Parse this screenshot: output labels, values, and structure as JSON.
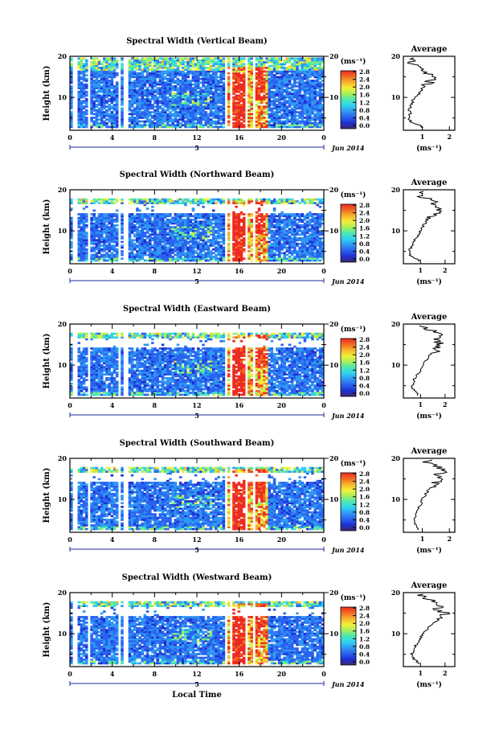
{
  "chart_data": [
    {
      "type": "heatmap",
      "title": "Spectral Width (Vertical Beam)",
      "ylabel": "Height (km)",
      "xlim": [
        0,
        24
      ],
      "ylim": [
        2,
        20
      ],
      "x_ticks": [
        "0",
        "4",
        "8",
        "12",
        "16",
        "20",
        "0"
      ],
      "y_ticks": [
        "20",
        "10"
      ],
      "date_axis": {
        "day_label": "5",
        "end_label": "Jun 2014"
      },
      "colorbar": {
        "unit": "(ms⁻¹)",
        "ticks": [
          "2.8",
          "2.4",
          "2.0",
          "1.6",
          "1.2",
          "0.8",
          "0.4",
          "0.0"
        ],
        "range": [
          0,
          2.8
        ]
      },
      "average_profile": {
        "title": "Average",
        "xlabel": "(ms⁻¹)",
        "x_ticks": [
          "1",
          "2"
        ],
        "xlim": [
          0.3,
          2.2
        ],
        "y_ticks": [
          "20",
          "10"
        ],
        "heights": [
          3,
          4,
          5,
          6,
          7,
          8,
          9,
          10,
          11,
          12,
          13,
          14,
          15,
          16,
          17,
          18,
          19
        ],
        "values": [
          1.0,
          0.6,
          0.5,
          0.55,
          0.5,
          0.6,
          0.65,
          0.7,
          0.9,
          1.0,
          1.1,
          1.3,
          1.5,
          1.2,
          0.8,
          0.6,
          0.7
        ]
      }
    },
    {
      "type": "heatmap",
      "title": "Spectral Width (Northward Beam)",
      "ylabel": "Height (km)",
      "xlim": [
        0,
        24
      ],
      "ylim": [
        2,
        20
      ],
      "x_ticks": [
        "0",
        "4",
        "8",
        "12",
        "16",
        "20",
        "0"
      ],
      "y_ticks": [
        "20",
        "10"
      ],
      "date_axis": {
        "day_label": "5",
        "end_label": "Jun 2014"
      },
      "colorbar": {
        "unit": "(ms⁻¹)",
        "ticks": [
          "2.8",
          "2.4",
          "2.0",
          "1.6",
          "1.2",
          "0.8",
          "0.4",
          "0.0"
        ],
        "range": [
          0,
          2.8
        ]
      },
      "average_profile": {
        "title": "Average",
        "xlabel": "(ms⁻¹)",
        "x_ticks": [
          "1",
          "2"
        ],
        "xlim": [
          0.3,
          2.4
        ],
        "y_ticks": [
          "20",
          "10"
        ],
        "heights": [
          3,
          4,
          5,
          6,
          7,
          8,
          9,
          10,
          11,
          12,
          13,
          14,
          15,
          16,
          17,
          18,
          19
        ],
        "values": [
          0.9,
          0.6,
          0.55,
          0.6,
          0.7,
          0.8,
          0.9,
          1.0,
          1.1,
          1.2,
          1.3,
          1.5,
          1.8,
          1.4,
          1.6,
          1.2,
          0.9
        ]
      }
    },
    {
      "type": "heatmap",
      "title": "Spectral Width (Eastward Beam)",
      "ylabel": "Height (km)",
      "xlim": [
        0,
        24
      ],
      "ylim": [
        2,
        20
      ],
      "x_ticks": [
        "0",
        "4",
        "8",
        "12",
        "16",
        "20",
        "0"
      ],
      "y_ticks": [
        "20",
        "10"
      ],
      "date_axis": {
        "day_label": "5",
        "end_label": "Jun 2014"
      },
      "colorbar": {
        "unit": "(ms⁻¹)",
        "ticks": [
          "2.8",
          "2.4",
          "2.0",
          "1.6",
          "1.2",
          "0.8",
          "0.4",
          "0.0"
        ],
        "range": [
          0,
          2.8
        ]
      },
      "average_profile": {
        "title": "Average",
        "xlabel": "(ms⁻¹)",
        "x_ticks": [
          "1",
          "2"
        ],
        "xlim": [
          0.3,
          2.4
        ],
        "y_ticks": [
          "20",
          "10"
        ],
        "heights": [
          3,
          4,
          5,
          6,
          7,
          8,
          9,
          10,
          11,
          12,
          13,
          14,
          15,
          16,
          17,
          18,
          19
        ],
        "values": [
          0.9,
          0.7,
          0.65,
          0.7,
          0.8,
          0.9,
          1.0,
          1.1,
          1.2,
          1.3,
          1.5,
          1.7,
          1.9,
          1.6,
          2.0,
          1.8,
          1.1
        ]
      }
    },
    {
      "type": "heatmap",
      "title": "Spectral Width (Southward Beam)",
      "ylabel": "Height (km)",
      "xlim": [
        0,
        24
      ],
      "ylim": [
        2,
        20
      ],
      "x_ticks": [
        "0",
        "4",
        "8",
        "12",
        "16",
        "20",
        "0"
      ],
      "y_ticks": [
        "20",
        "10"
      ],
      "date_axis": {
        "day_label": "5",
        "end_label": "Jun 2014"
      },
      "colorbar": {
        "unit": "(ms⁻¹)",
        "ticks": [
          "2.8",
          "2.4",
          "2.0",
          "1.6",
          "1.2",
          "0.8",
          "0.4",
          "0.0"
        ],
        "range": [
          0,
          2.8
        ]
      },
      "average_profile": {
        "title": "Average",
        "xlabel": "(ms⁻¹)",
        "x_ticks": [
          "1",
          "2"
        ],
        "xlim": [
          0.3,
          2.2
        ],
        "y_ticks": [
          "20",
          "10"
        ],
        "heights": [
          3,
          4,
          5,
          6,
          7,
          8,
          9,
          10,
          11,
          12,
          13,
          14,
          15,
          16,
          17,
          18,
          19
        ],
        "values": [
          0.8,
          0.7,
          0.7,
          0.75,
          0.8,
          0.85,
          0.95,
          1.0,
          1.1,
          1.2,
          1.35,
          1.5,
          1.7,
          1.5,
          1.8,
          1.6,
          1.2
        ]
      }
    },
    {
      "type": "heatmap",
      "title": "Spectral Width (Westward Beam)",
      "ylabel": "Height (km)",
      "xlabel": "Local Time",
      "xlim": [
        0,
        24
      ],
      "ylim": [
        2,
        20
      ],
      "x_ticks": [
        "0",
        "4",
        "8",
        "12",
        "16",
        "20",
        "0"
      ],
      "y_ticks": [
        "20",
        "10"
      ],
      "date_axis": {
        "day_label": "5",
        "end_label": "Jun 2014"
      },
      "colorbar": {
        "unit": "(ms⁻¹)",
        "ticks": [
          "2.8",
          "2.4",
          "2.0",
          "1.6",
          "1.2",
          "0.8",
          "0.4",
          "0.0"
        ],
        "range": [
          0,
          2.8
        ]
      },
      "average_profile": {
        "title": "Average",
        "xlabel": "(ms⁻¹)",
        "x_ticks": [
          "1",
          "2"
        ],
        "xlim": [
          0.3,
          2.4
        ],
        "y_ticks": [
          "20",
          "10"
        ],
        "heights": [
          3,
          4,
          5,
          6,
          7,
          8,
          9,
          10,
          11,
          12,
          13,
          14,
          15,
          16,
          17,
          18,
          19
        ],
        "values": [
          0.9,
          0.7,
          0.65,
          0.7,
          0.8,
          0.9,
          1.0,
          1.1,
          1.25,
          1.4,
          1.6,
          1.8,
          2.0,
          1.7,
          1.9,
          1.5,
          1.0
        ]
      }
    }
  ],
  "colors": {
    "colormap": [
      "#3b2a73",
      "#1f2fd0",
      "#2a63ef",
      "#2f98f2",
      "#2fd2f0",
      "#4be7b4",
      "#a6ef5a",
      "#f3ef3c",
      "#f6b42c",
      "#f06a24",
      "#ec2b22"
    ],
    "background": "#ffffff",
    "axis": "#000000"
  }
}
